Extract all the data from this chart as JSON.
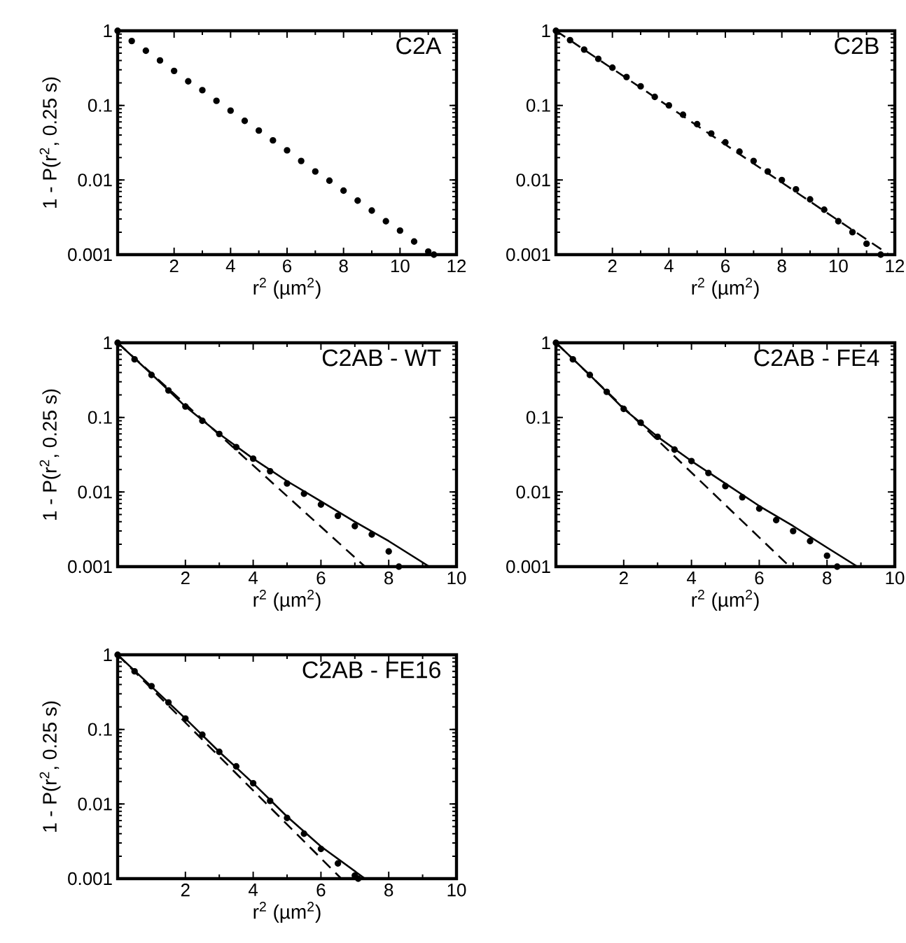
{
  "chart_data": [
    {
      "type": "scatter",
      "title": "C2A",
      "xlabel": "r$^{2}$ (µm$^{2}$)",
      "ylabel": "1 - P(r$^{2}$, 0.25 s)",
      "log": "y",
      "xlim": [
        0,
        12
      ],
      "ylim": [
        0.001,
        1
      ],
      "xticks": [
        2,
        4,
        6,
        8,
        10,
        12
      ],
      "yticks": [
        0.001,
        0.01,
        0.1,
        1
      ],
      "marker": "circle",
      "series": [
        {
          "color": "#000000",
          "x": [
            0,
            0.5,
            1,
            1.5,
            2,
            2.5,
            3,
            3.5,
            4,
            4.5,
            5,
            5.5,
            6,
            6.5,
            7,
            7.5,
            8,
            8.5,
            9,
            9.5,
            10,
            10.5,
            11,
            11.2
          ],
          "values": [
            1,
            0.73,
            0.54,
            0.4,
            0.29,
            0.21,
            0.16,
            0.115,
            0.085,
            0.062,
            0.046,
            0.034,
            0.025,
            0.018,
            0.013,
            0.0098,
            0.0072,
            0.0053,
            0.0039,
            0.0028,
            0.0021,
            0.0015,
            0.0011,
            0.001
          ]
        }
      ]
    },
    {
      "type": "scatter",
      "title": "C2B",
      "xlabel": "r$^{2}$ (µm$^{2}$)",
      "log": "y",
      "xlim": [
        0,
        12
      ],
      "ylim": [
        0.001,
        1
      ],
      "xticks": [
        2,
        4,
        6,
        8,
        10,
        12
      ],
      "yticks": [
        0.001,
        0.01,
        0.1,
        1
      ],
      "marker": "circle",
      "series": [
        {
          "color": "#000000",
          "x": [
            0,
            0.5,
            1,
            1.5,
            2,
            2.5,
            3,
            3.5,
            4,
            4.5,
            5,
            5.5,
            6,
            6.5,
            7,
            7.5,
            8,
            8.5,
            9,
            9.5,
            10,
            10.5,
            11,
            11.5
          ],
          "values": [
            1,
            0.75,
            0.56,
            0.42,
            0.32,
            0.24,
            0.18,
            0.13,
            0.1,
            0.075,
            0.056,
            0.042,
            0.032,
            0.024,
            0.018,
            0.013,
            0.01,
            0.0075,
            0.0055,
            0.004,
            0.0028,
            0.002,
            0.0014,
            0.001
          ]
        },
        {
          "type": "line",
          "color": "#000000",
          "marker": "none",
          "line_style": "dashed",
          "x": [
            0,
            11.8
          ],
          "values": [
            1,
            0.001
          ]
        }
      ]
    },
    {
      "type": "scatter",
      "title": "C2AB - WT",
      "xlabel": "r$^{2}$ (µm$^{2}$)",
      "ylabel": "1 - P(r$^{2}$, 0.25 s)",
      "log": "y",
      "xlim": [
        0,
        10
      ],
      "ylim": [
        0.001,
        1
      ],
      "xticks": [
        2,
        4,
        6,
        8,
        10
      ],
      "yticks": [
        0.001,
        0.01,
        0.1,
        1
      ],
      "marker": "circle",
      "series": [
        {
          "color": "#000000",
          "x": [
            0,
            0.5,
            1,
            1.5,
            2,
            2.5,
            3,
            3.5,
            4,
            4.5,
            5,
            5.5,
            6,
            6.5,
            7,
            7.5,
            8,
            8.3
          ],
          "values": [
            1,
            0.6,
            0.37,
            0.23,
            0.14,
            0.09,
            0.06,
            0.04,
            0.028,
            0.019,
            0.013,
            0.0095,
            0.0068,
            0.0048,
            0.0035,
            0.0027,
            0.0016,
            0.001
          ]
        },
        {
          "type": "line",
          "color": "#000000",
          "marker": "none",
          "line_style": "dashed",
          "x": [
            0,
            7.3
          ],
          "values": [
            1,
            0.001
          ]
        },
        {
          "type": "line",
          "color": "#000000",
          "marker": "none",
          "line_style": "solid",
          "x": [
            0,
            1,
            2,
            3,
            4,
            5,
            6,
            7,
            8,
            9.2
          ],
          "values": [
            1,
            0.38,
            0.14,
            0.06,
            0.028,
            0.014,
            0.0075,
            0.004,
            0.0022,
            0.001
          ]
        }
      ]
    },
    {
      "type": "scatter",
      "title": "C2AB - FE4",
      "xlabel": "r$^{2}$ (µm$^{2}$)",
      "log": "y",
      "xlim": [
        0,
        10
      ],
      "ylim": [
        0.001,
        1
      ],
      "xticks": [
        2,
        4,
        6,
        8,
        10
      ],
      "yticks": [
        0.001,
        0.01,
        0.1,
        1
      ],
      "marker": "circle",
      "series": [
        {
          "color": "#000000",
          "x": [
            0,
            0.5,
            1,
            1.5,
            2,
            2.5,
            3,
            3.5,
            4,
            4.5,
            5,
            5.5,
            6,
            6.5,
            7,
            7.5,
            8,
            8.3
          ],
          "values": [
            1,
            0.6,
            0.37,
            0.22,
            0.13,
            0.085,
            0.055,
            0.037,
            0.026,
            0.018,
            0.012,
            0.0085,
            0.006,
            0.0042,
            0.003,
            0.0022,
            0.0014,
            0.001
          ]
        },
        {
          "type": "line",
          "color": "#000000",
          "marker": "none",
          "line_style": "dashed",
          "x": [
            0,
            6.9
          ],
          "values": [
            1,
            0.001
          ]
        },
        {
          "type": "line",
          "color": "#000000",
          "marker": "none",
          "line_style": "solid",
          "x": [
            0,
            1,
            2,
            3,
            4,
            5,
            6,
            7,
            8,
            8.9
          ],
          "values": [
            1,
            0.37,
            0.13,
            0.055,
            0.026,
            0.013,
            0.0065,
            0.0035,
            0.0018,
            0.001
          ]
        }
      ]
    },
    {
      "type": "scatter",
      "title": "C2AB - FE16",
      "xlabel": "r$^{2}$ (µm$^{2}$)",
      "ylabel": "1 - P(r$^{2}$, 0.25 s)",
      "log": "y",
      "xlim": [
        0,
        10
      ],
      "ylim": [
        0.001,
        1
      ],
      "xticks": [
        2,
        4,
        6,
        8,
        10
      ],
      "yticks": [
        0.001,
        0.01,
        0.1,
        1
      ],
      "marker": "circle",
      "series": [
        {
          "color": "#000000",
          "x": [
            0,
            0.5,
            1,
            1.5,
            2,
            2.5,
            3,
            3.5,
            4,
            4.5,
            5,
            5.5,
            6,
            6.5,
            7,
            7.1
          ],
          "values": [
            1,
            0.6,
            0.38,
            0.23,
            0.14,
            0.085,
            0.05,
            0.032,
            0.019,
            0.011,
            0.0065,
            0.004,
            0.0025,
            0.0016,
            0.0011,
            0.001
          ]
        },
        {
          "type": "line",
          "color": "#000000",
          "marker": "none",
          "line_style": "dashed",
          "x": [
            0,
            6.6
          ],
          "values": [
            1,
            0.001
          ]
        },
        {
          "type": "line",
          "color": "#000000",
          "marker": "none",
          "line_style": "solid",
          "x": [
            0,
            2,
            3,
            4,
            5,
            6,
            7.3
          ],
          "values": [
            1,
            0.14,
            0.05,
            0.019,
            0.0068,
            0.0027,
            0.001
          ]
        }
      ]
    }
  ]
}
